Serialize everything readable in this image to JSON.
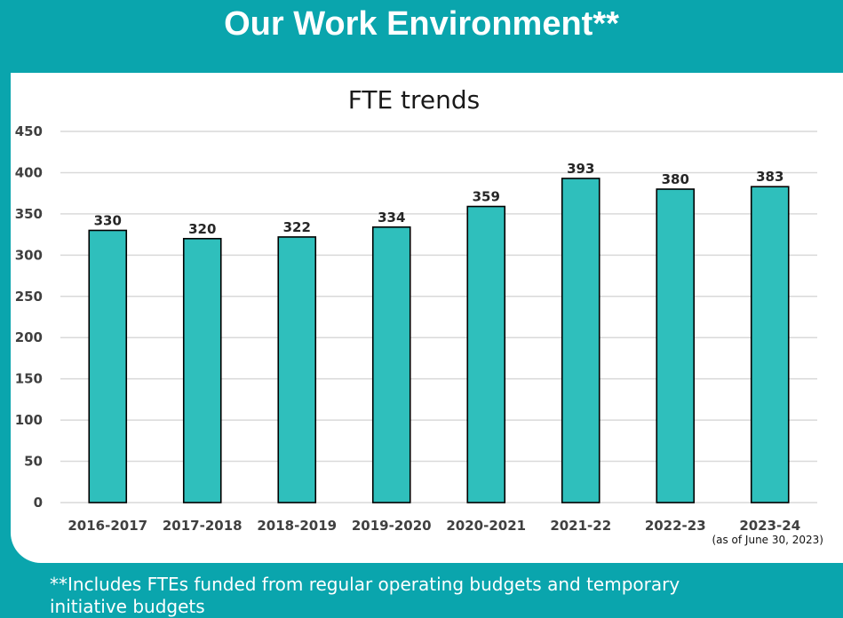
{
  "header": {
    "title": "Our Work Environment**"
  },
  "chart_data": {
    "type": "bar",
    "title": "FTE trends",
    "categories": [
      "2016-2017",
      "2017-2018",
      "2018-2019",
      "2019-2020",
      "2020-2021",
      "2021-22",
      "2022-23",
      "2023-24"
    ],
    "values": [
      330,
      320,
      322,
      334,
      359,
      393,
      380,
      383
    ],
    "category_note": "(as of June 30, 2023)",
    "xlabel": "",
    "ylabel": "",
    "ylim": [
      0,
      450
    ],
    "yticks": [
      0,
      50,
      100,
      150,
      200,
      250,
      300,
      350,
      400,
      450
    ],
    "grid": true,
    "legend": "none",
    "bar_color": "#2fbfbc",
    "bar_edge_color": "#000000"
  },
  "footnote": {
    "line1": "**Includes FTEs funded from regular operating budgets and temporary",
    "line2": "initiative budgets"
  },
  "colors": {
    "background": "#0aa5ad",
    "panel": "#ffffff"
  }
}
